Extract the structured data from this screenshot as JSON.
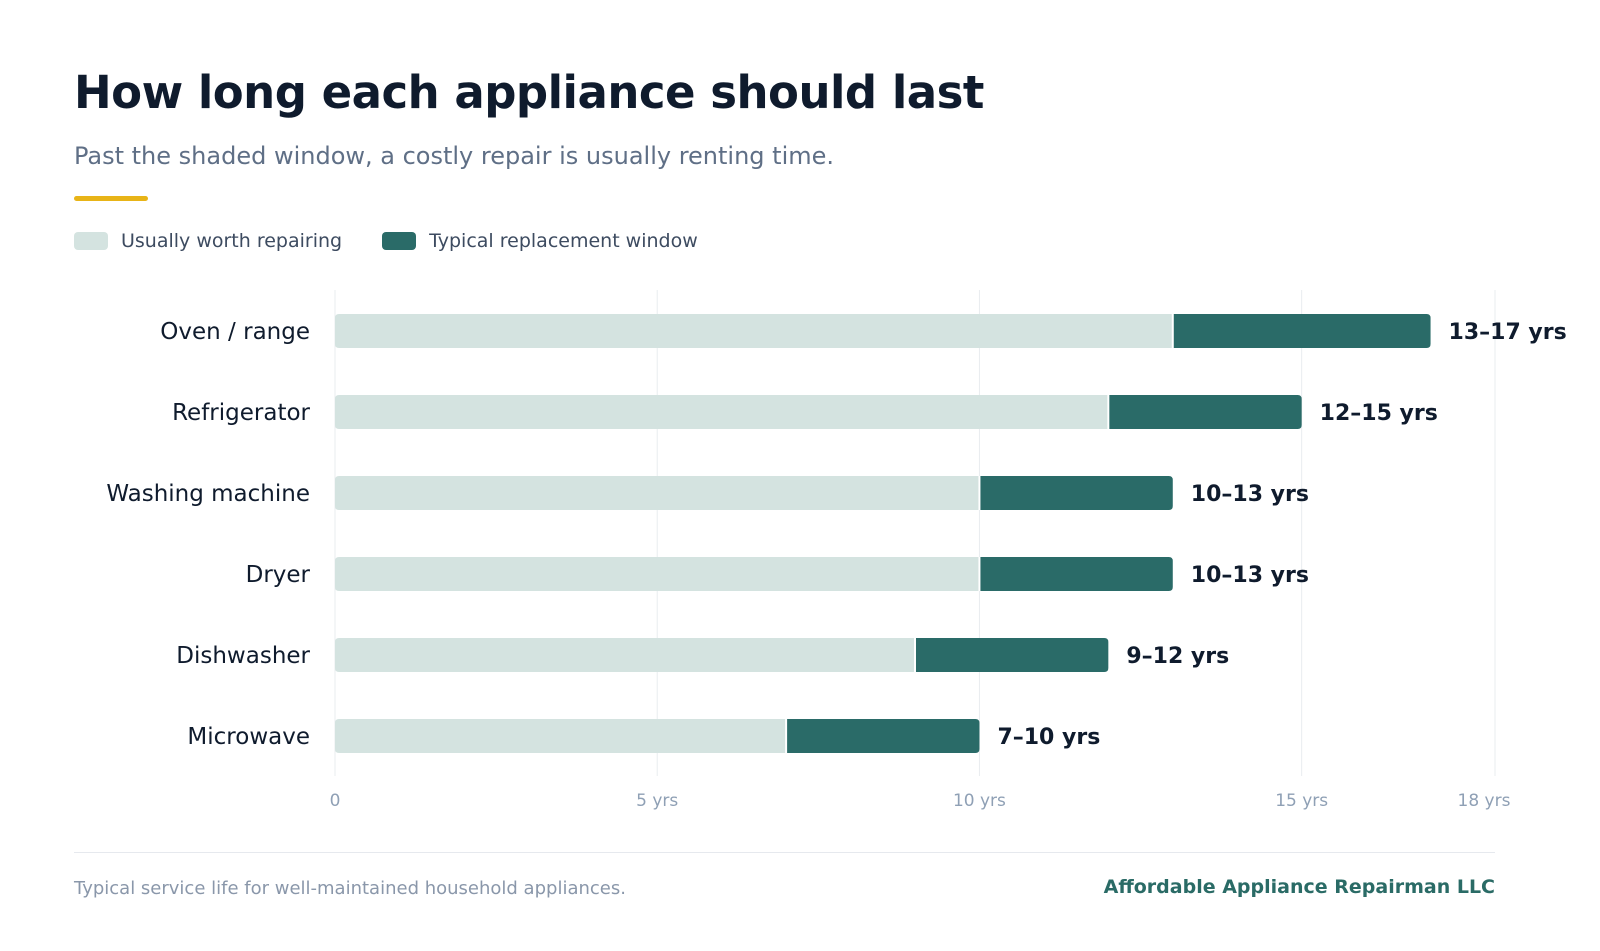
{
  "header": {
    "title": "How long each appliance should last",
    "subtitle": "Past the shaded window, a costly repair is usually renting time."
  },
  "legend": {
    "items": [
      {
        "label": "Usually worth repairing",
        "color": "#d4e3e0"
      },
      {
        "label": "Typical replacement window",
        "color": "#2a6b68"
      }
    ]
  },
  "colors": {
    "accent": "#e8b417",
    "repair": "#d4e3e0",
    "replace": "#2a6b68",
    "brand": "#2a6b66"
  },
  "chart_data": {
    "type": "bar",
    "orientation": "horizontal",
    "stacked": true,
    "categories": [
      "Oven / range",
      "Refrigerator",
      "Washing machine",
      "Dryer",
      "Dishwasher",
      "Microwave"
    ],
    "series": [
      {
        "name": "Usually worth repairing",
        "values": [
          13,
          12,
          10,
          10,
          9,
          7
        ]
      },
      {
        "name": "Typical replacement window",
        "values": [
          4,
          3,
          3,
          3,
          3,
          3
        ]
      }
    ],
    "data_labels": [
      "13–17 yrs",
      "12–15 yrs",
      "10–13 yrs",
      "10–13 yrs",
      "9–12 yrs",
      "7–10 yrs"
    ],
    "xlim": [
      0,
      18
    ],
    "x_ticks": [
      0,
      5,
      10,
      15,
      18
    ],
    "x_tick_labels": [
      "0",
      "5 yrs",
      "10 yrs",
      "15 yrs",
      "18 yrs"
    ],
    "grid": true,
    "legend_position": "top-left"
  },
  "footer": {
    "note": "Typical service life for well-maintained household appliances.",
    "brand": "Affordable Appliance Repairman LLC"
  }
}
